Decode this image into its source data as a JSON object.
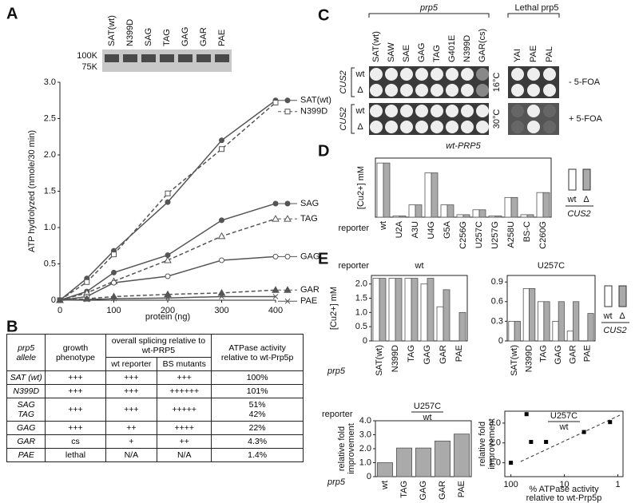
{
  "panel_labels": [
    "A",
    "B",
    "C",
    "D",
    "E"
  ],
  "gel": {
    "markers": [
      "100K",
      "75K"
    ],
    "lanes": [
      "SAT(wt)",
      "N399D",
      "SAG",
      "TAG",
      "GAG",
      "GAR",
      "PAE"
    ]
  },
  "table": {
    "header": [
      "prp5 allele",
      "growth phenotype",
      "overall splicing relative to wt-PRP5",
      "ATPase activity relative to wt-Prp5p"
    ],
    "subheader": [
      "wt reporter",
      "BS mutants"
    ],
    "rows": [
      [
        [
          "SAT (wt)"
        ],
        [
          "+++"
        ],
        [
          "+++"
        ],
        [
          "+++"
        ],
        [
          "100%"
        ]
      ],
      [
        [
          "N399D"
        ],
        [
          "+++"
        ],
        [
          "+++"
        ],
        [
          "++++++"
        ],
        [
          "101%"
        ]
      ],
      [
        [
          "SAG",
          "TAG"
        ],
        [
          "+++"
        ],
        [
          "+++"
        ],
        [
          "+++++"
        ],
        [
          "51%",
          "42%"
        ]
      ],
      [
        [
          "GAG"
        ],
        [
          "+++"
        ],
        [
          "++"
        ],
        [
          "++++"
        ],
        [
          "22%"
        ]
      ],
      [
        [
          "GAR"
        ],
        [
          "cs"
        ],
        [
          "+"
        ],
        [
          "++"
        ],
        [
          "4.3%"
        ]
      ],
      [
        [
          "PAE"
        ],
        [
          "lethal"
        ],
        [
          "N/A"
        ],
        [
          "N/A"
        ],
        [
          "1.4%"
        ]
      ]
    ]
  },
  "plates": {
    "group_label": "prp5",
    "columns": [
      "SAT(wt)",
      "SAW",
      "SAE",
      "GAG",
      "TAG",
      "G401E",
      "N399D",
      "GAR(cs)"
    ],
    "lethal_label": "Lethal prp5",
    "lethal_columns": [
      "YAI",
      "PAE",
      "PAL"
    ],
    "strain_label": "CUS2",
    "rows": [
      "wt",
      "Δ"
    ],
    "temps": [
      "16°C",
      "30°C"
    ],
    "foa": [
      "- 5-FOA",
      "+ 5-FOA"
    ]
  },
  "chart_data": [
    {
      "type": "line",
      "xlabel": "protein (ng)",
      "ylabel": "ATP hydrolyzed (nmole/30 min)",
      "x": [
        0,
        50,
        100,
        200,
        300,
        400
      ],
      "xlim": [
        0,
        400
      ],
      "xticks": [
        0,
        100,
        200,
        300,
        400
      ],
      "ylim": [
        0,
        3
      ],
      "yticks": [
        0,
        0.5,
        {
          "value": 1,
          "label": "1.0"
        },
        1.5,
        {
          "value": 2,
          "label": "2.0"
        },
        2.5,
        {
          "value": 3,
          "label": "3.0"
        }
      ],
      "series": [
        {
          "name": "SAT(wt)",
          "color": "#555555",
          "dashed": false,
          "marker": "circle",
          "filled": true,
          "values": [
            0,
            0.3,
            0.68,
            1.35,
            2.2,
            2.75
          ]
        },
        {
          "name": "N399D",
          "color": "#555555",
          "dashed": true,
          "marker": "square",
          "filled": false,
          "values": [
            0,
            0.25,
            0.63,
            1.47,
            2.08,
            2.72
          ]
        },
        {
          "name": "SAG",
          "color": "#555555",
          "dashed": false,
          "marker": "circle",
          "filled": true,
          "values": [
            0,
            0.12,
            0.38,
            0.62,
            1.1,
            1.33
          ]
        },
        {
          "name": "TAG",
          "color": "#555555",
          "dashed": true,
          "marker": "triangle",
          "filled": false,
          "values": [
            0,
            0.1,
            0.26,
            0.55,
            0.88,
            1.12
          ]
        },
        {
          "name": "GAG",
          "color": "#555555",
          "dashed": false,
          "marker": "circle",
          "filled": false,
          "values": [
            0,
            0.05,
            0.24,
            0.33,
            0.55,
            0.6
          ]
        },
        {
          "name": "GAR",
          "color": "#555555",
          "dashed": true,
          "marker": "triangle",
          "filled": true,
          "values": [
            0,
            0.02,
            0.05,
            0.08,
            0.1,
            0.14
          ]
        },
        {
          "name": "PAE",
          "color": "#555555",
          "dashed": false,
          "marker": "x",
          "filled": false,
          "values": [
            0,
            0.01,
            0.02,
            0.03,
            0.05,
            0.05
          ]
        }
      ]
    },
    {
      "type": "bar",
      "title": "wt-PRP5",
      "ylabel": "[Cu2+] mM",
      "reporter_label": "reporter",
      "legend_title": "CUS2",
      "ylim": [
        0,
        2.4
      ],
      "categories": [
        "wt",
        "U2A",
        "A3U",
        "U4G",
        "G5A",
        "C256G",
        "U257C",
        "U257G",
        "A258U",
        "BS-C",
        "C260G"
      ],
      "series": [
        {
          "name": "wt",
          "color": "#ffffff",
          "values": [
            2.2,
            0.05,
            0.5,
            1.8,
            0.5,
            0.1,
            0.3,
            0.05,
            0.8,
            0.1,
            1.0
          ]
        },
        {
          "name": "Δ",
          "color": "#aaaaaa",
          "values": [
            2.2,
            0.05,
            0.5,
            1.8,
            0.5,
            0.1,
            0.3,
            0.05,
            0.8,
            0.1,
            1.0
          ]
        }
      ]
    },
    {
      "type": "bar",
      "title": "wt",
      "reporter_label": "reporter",
      "ylabel": "[Cu2+] mM",
      "xlabel": "prp5",
      "ylim": [
        0,
        2.3
      ],
      "yticks": [
        0,
        0.5,
        {
          "value": 1,
          "label": "1.0"
        },
        1.5,
        {
          "value": 2,
          "label": "2.0"
        }
      ],
      "categories": [
        "SAT(wt)",
        "N399D",
        "TAG",
        "GAG",
        "GAR",
        "PAE"
      ],
      "series": [
        {
          "name": "wt",
          "color": "#ffffff",
          "values": [
            2.2,
            2.2,
            2.2,
            2.0,
            1.2,
            null
          ]
        },
        {
          "name": "Δ",
          "color": "#aaaaaa",
          "values": [
            2.2,
            2.2,
            2.2,
            2.2,
            1.8,
            1.0
          ]
        }
      ]
    },
    {
      "type": "bar",
      "title": "U257C",
      "legend_title": "CUS2",
      "ylim": [
        0,
        1.0
      ],
      "yticks": [
        0,
        0.3,
        0.6,
        0.9
      ],
      "categories": [
        "SAT(wt)",
        "N399D",
        "TAG",
        "GAG",
        "GAR",
        "PAE"
      ],
      "series": [
        {
          "name": "wt",
          "color": "#ffffff",
          "values": [
            0.3,
            0.8,
            0.6,
            0.3,
            0.15,
            null
          ]
        },
        {
          "name": "Δ",
          "color": "#aaaaaa",
          "values": [
            0.3,
            0.8,
            0.6,
            0.6,
            0.6,
            0.42
          ]
        }
      ]
    },
    {
      "type": "bar",
      "reporter_label": "reporter",
      "title_num": "U257C",
      "title_den": "wt",
      "ylabel": [
        "relative fold",
        "improvement"
      ],
      "xlabel": "prp5",
      "ylim": [
        0,
        4
      ],
      "yticks": [
        0,
        {
          "value": 1,
          "label": "1.0"
        },
        {
          "value": 2,
          "label": "2.0"
        },
        {
          "value": 3,
          "label": "3.0"
        },
        {
          "value": 4,
          "label": "4.0"
        }
      ],
      "categories": [
        "wt",
        "TAG",
        "GAG",
        "GAR",
        "PAE"
      ],
      "series": [
        {
          "name": null,
          "color": "#aaaaaa",
          "values": [
            1.0,
            2.05,
            2.05,
            2.55,
            3.05
          ]
        }
      ]
    },
    {
      "type": "scatter",
      "title_num": "U257C",
      "title_den": "wt",
      "ylabel": [
        "relative fold",
        "improvement"
      ],
      "xlabel": [
        "% ATPase activity",
        "relative to wt-Prp5p"
      ],
      "xlog": true,
      "xlim": [
        130,
        0.8
      ],
      "xticks": [
        100,
        10,
        1
      ],
      "ylim": [
        0.3,
        3.6
      ],
      "yticks": [
        {
          "value": 1,
          "label": "1.0"
        },
        {
          "value": 2,
          "label": "2.0"
        },
        {
          "value": 3,
          "label": "3.0"
        }
      ],
      "color": "#000000",
      "x": [
        100,
        51,
        42,
        22,
        4.3,
        1.4
      ],
      "values": [
        1.0,
        3.45,
        2.05,
        2.05,
        2.55,
        3.05
      ]
    }
  ]
}
